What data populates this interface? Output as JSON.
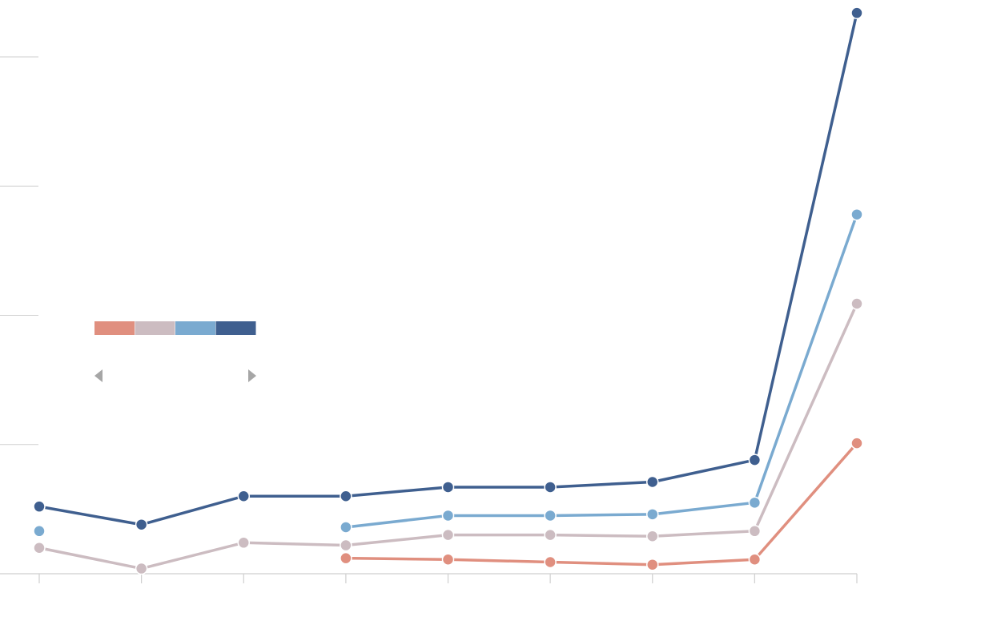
{
  "chart_data": {
    "type": "line",
    "categories": [
      null,
      null,
      null,
      null,
      null,
      null,
      null,
      null,
      null
    ],
    "series": [
      {
        "color": "#e08f7f",
        "values": [
          null,
          null,
          null,
          0.12,
          0.11,
          0.09,
          0.07,
          0.11,
          1.01
        ]
      },
      {
        "color": "#ccbcc1",
        "values": [
          0.2,
          0.04,
          0.24,
          0.22,
          0.3,
          0.3,
          0.29,
          0.33,
          2.09
        ]
      },
      {
        "color": "#7aaad0",
        "values": [
          0.33,
          null,
          null,
          0.36,
          0.45,
          0.45,
          0.46,
          0.55,
          2.78
        ]
      },
      {
        "color": "#3f5f8f",
        "values": [
          0.52,
          0.38,
          0.6,
          0.6,
          0.67,
          0.67,
          0.71,
          0.88,
          4.34
        ]
      }
    ],
    "ylim": [
      0,
      4.4
    ],
    "yticks": [
      0,
      1,
      2,
      3,
      4
    ],
    "grid": true
  }
}
